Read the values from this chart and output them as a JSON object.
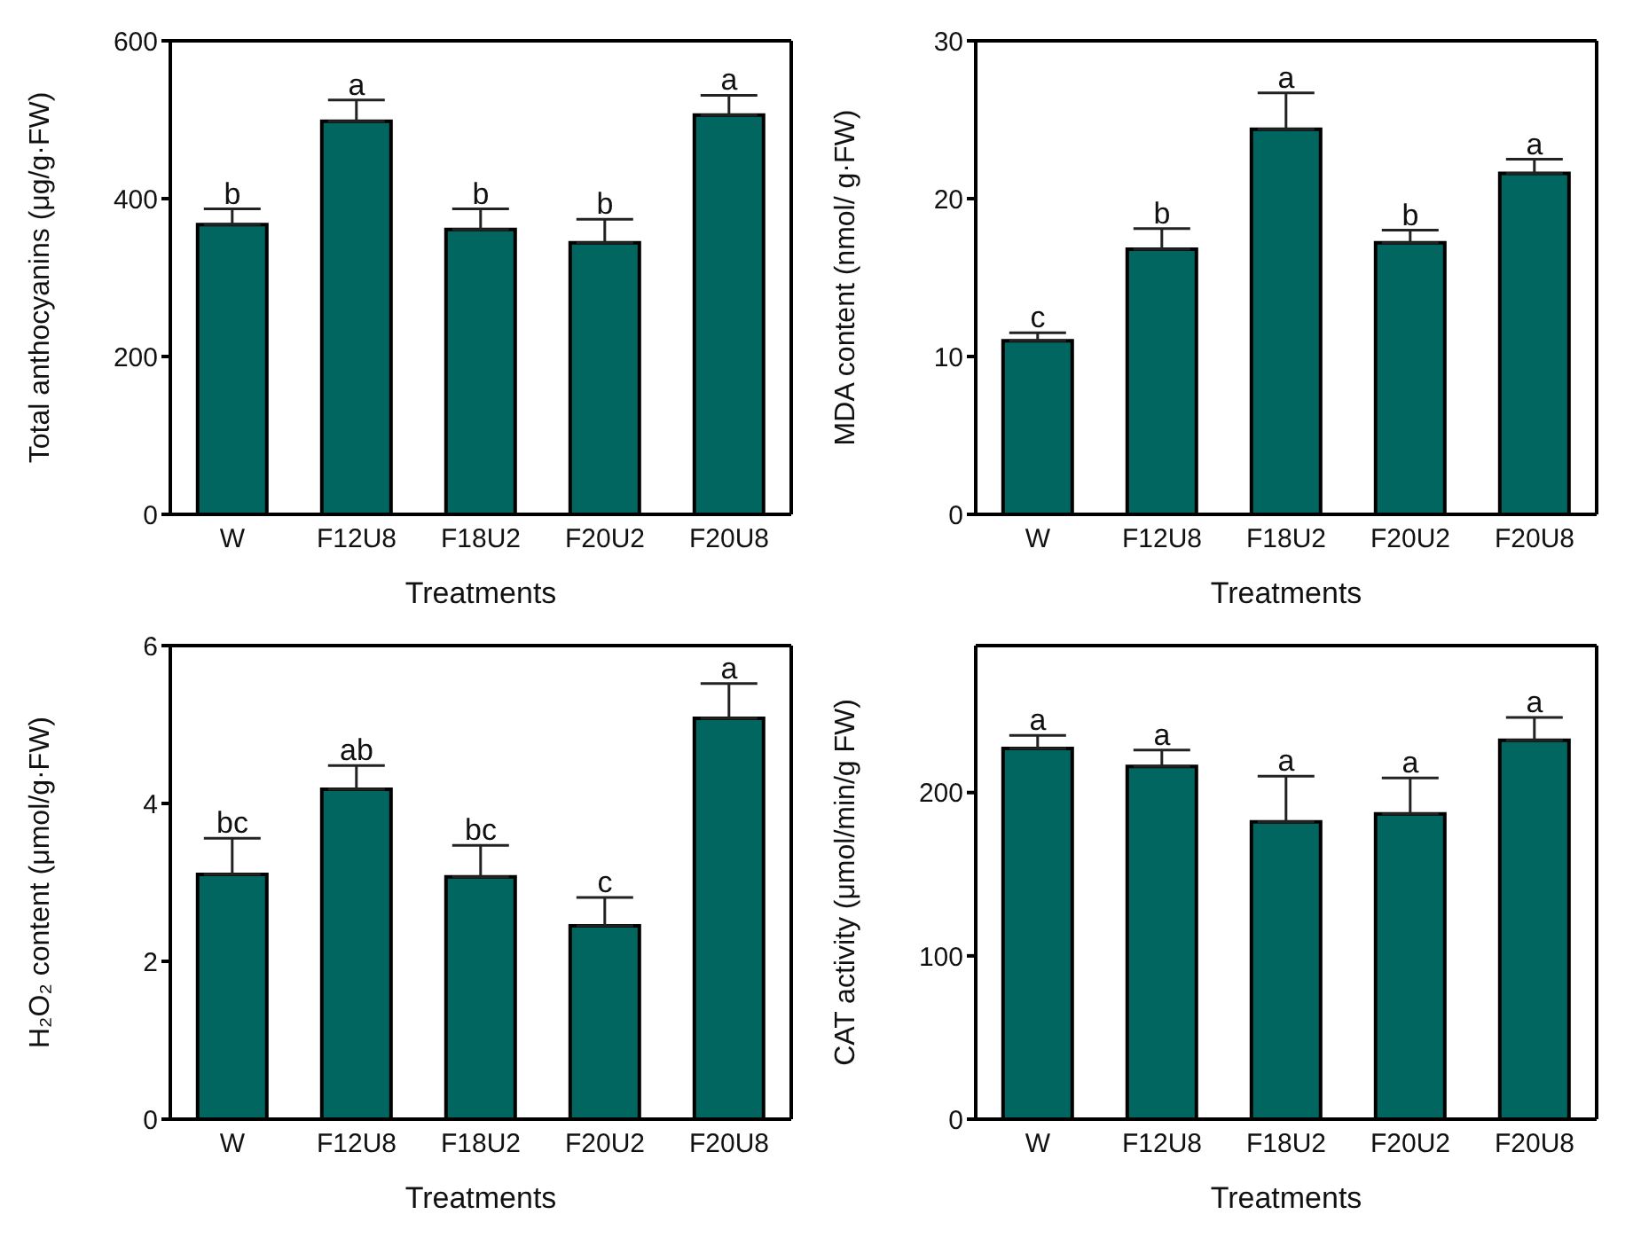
{
  "chart_data": [
    {
      "type": "bar",
      "categories": [
        "W",
        "F12U8",
        "F18U2",
        "F20U2",
        "F20U8"
      ],
      "values": [
        367,
        498,
        361,
        344,
        506
      ],
      "errors": [
        20,
        27,
        26,
        30,
        25
      ],
      "color": "#00665f",
      "ylabel": "Total anthocyanins (μg/g·FW)",
      "xlabel": "Treatments",
      "ylim": [
        0,
        600
      ],
      "yticks": [
        0,
        200,
        400,
        600
      ],
      "grid": false,
      "legend": false,
      "annotations": [
        {
          "text": "b",
          "x": "W",
          "y": 387
        },
        {
          "text": "a",
          "x": "F12U8",
          "y": 525
        },
        {
          "text": "b",
          "x": "F18U2",
          "y": 387
        },
        {
          "text": "b",
          "x": "F20U2",
          "y": 374
        },
        {
          "text": "a",
          "x": "F20U8",
          "y": 531
        }
      ]
    },
    {
      "type": "bar",
      "categories": [
        "W",
        "F12U8",
        "F18U2",
        "F20U2",
        "F20U8"
      ],
      "values": [
        11.0,
        16.8,
        24.4,
        17.2,
        21.6
      ],
      "errors": [
        0.5,
        1.3,
        2.3,
        0.8,
        0.9
      ],
      "color": "#00665f",
      "ylabel": "MDA content (nmol/ g·FW)",
      "xlabel": "Treatments",
      "ylim": [
        0,
        30
      ],
      "yticks": [
        0,
        10,
        20,
        30
      ],
      "grid": false,
      "legend": false,
      "annotations": [
        {
          "text": "c",
          "x": "W",
          "y": 11.5
        },
        {
          "text": "b",
          "x": "F12U8",
          "y": 18.1
        },
        {
          "text": "a",
          "x": "F18U2",
          "y": 26.7
        },
        {
          "text": "b",
          "x": "F20U2",
          "y": 18.0
        },
        {
          "text": "a",
          "x": "F20U8",
          "y": 22.5
        }
      ]
    },
    {
      "type": "bar",
      "categories": [
        "W",
        "F12U8",
        "F18U2",
        "F20U2",
        "F20U8"
      ],
      "values": [
        3.1,
        4.18,
        3.07,
        2.45,
        5.08
      ],
      "errors": [
        0.46,
        0.3,
        0.4,
        0.36,
        0.44
      ],
      "color": "#00665f",
      "ylabel": "H₂O₂ content (μmol/g·FW)",
      "xlabel": "Treatments",
      "ylim": [
        0,
        6
      ],
      "yticks": [
        0,
        2,
        4,
        6
      ],
      "grid": false,
      "legend": false,
      "annotations": [
        {
          "text": "bc",
          "x": "W",
          "y": 3.56
        },
        {
          "text": "ab",
          "x": "F12U8",
          "y": 4.48
        },
        {
          "text": "bc",
          "x": "F18U2",
          "y": 3.47
        },
        {
          "text": "c",
          "x": "F20U2",
          "y": 2.81
        },
        {
          "text": "a",
          "x": "F20U8",
          "y": 5.52
        }
      ]
    },
    {
      "type": "bar",
      "categories": [
        "W",
        "F12U8",
        "F18U2",
        "F20U2",
        "F20U8"
      ],
      "values": [
        227,
        216,
        182,
        187,
        232
      ],
      "errors": [
        8,
        10,
        28,
        22,
        14
      ],
      "color": "#00665f",
      "ylabel": "CAT activity (μmol/min/g FW)",
      "xlabel": "Treatments",
      "ylim": [
        0,
        290
      ],
      "yticks": [
        0,
        100,
        200
      ],
      "grid": false,
      "legend": false,
      "annotations": [
        {
          "text": "a",
          "x": "W",
          "y": 235
        },
        {
          "text": "a",
          "x": "F12U8",
          "y": 226
        },
        {
          "text": "a",
          "x": "F18U2",
          "y": 210
        },
        {
          "text": "a",
          "x": "F20U2",
          "y": 209
        },
        {
          "text": "a",
          "x": "F20U8",
          "y": 246
        }
      ]
    }
  ]
}
